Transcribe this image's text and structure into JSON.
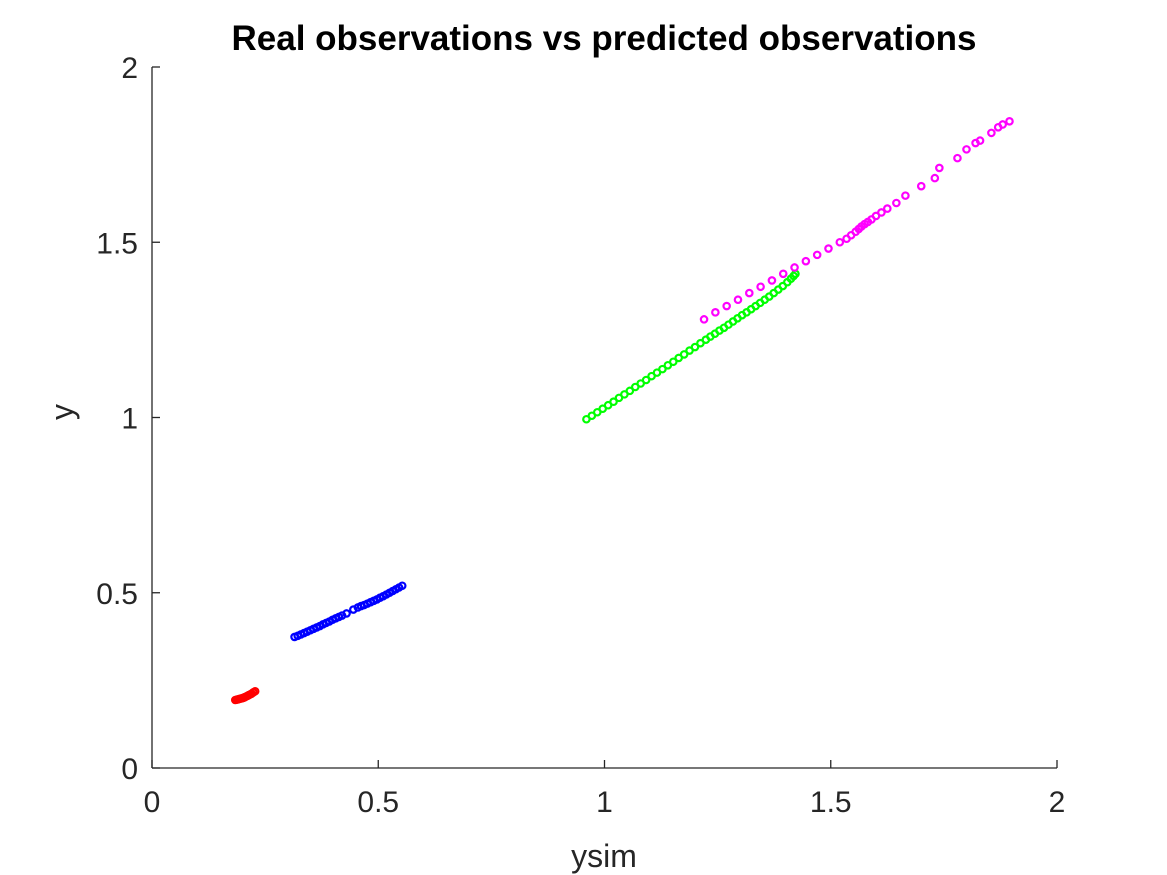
{
  "chart_data": {
    "type": "scatter",
    "title": "Real observations vs predicted observations",
    "xlabel": "ysim",
    "ylabel": "y",
    "xlim": [
      0,
      2
    ],
    "ylim": [
      0,
      2
    ],
    "xticks": [
      0,
      0.5,
      1,
      1.5,
      2
    ],
    "yticks": [
      0,
      0.5,
      1,
      1.5,
      2
    ],
    "xtick_labels": [
      "0",
      "0.5",
      "1",
      "1.5",
      "2"
    ],
    "ytick_labels": [
      "0",
      "0.5",
      "1",
      "1.5",
      "2"
    ],
    "grid": false,
    "legend": "none",
    "marker": "open-circle",
    "series": [
      {
        "color": "#ff0000",
        "points": [
          [
            0.184,
            0.194
          ],
          [
            0.187,
            0.195
          ],
          [
            0.19,
            0.196
          ],
          [
            0.193,
            0.197
          ],
          [
            0.196,
            0.198
          ],
          [
            0.199,
            0.199
          ],
          [
            0.201,
            0.2
          ],
          [
            0.203,
            0.201
          ],
          [
            0.205,
            0.202
          ],
          [
            0.208,
            0.204
          ],
          [
            0.211,
            0.206
          ],
          [
            0.214,
            0.208
          ],
          [
            0.217,
            0.21
          ],
          [
            0.22,
            0.212
          ],
          [
            0.224,
            0.216
          ],
          [
            0.228,
            0.219
          ]
        ]
      },
      {
        "color": "#0000ff",
        "points": [
          [
            0.315,
            0.374
          ],
          [
            0.322,
            0.377
          ],
          [
            0.329,
            0.381
          ],
          [
            0.336,
            0.385
          ],
          [
            0.343,
            0.389
          ],
          [
            0.35,
            0.393
          ],
          [
            0.357,
            0.397
          ],
          [
            0.364,
            0.401
          ],
          [
            0.371,
            0.405
          ],
          [
            0.378,
            0.41
          ],
          [
            0.385,
            0.414
          ],
          [
            0.392,
            0.418
          ],
          [
            0.399,
            0.423
          ],
          [
            0.406,
            0.427
          ],
          [
            0.413,
            0.431
          ],
          [
            0.42,
            0.435
          ],
          [
            0.43,
            0.441
          ],
          [
            0.445,
            0.452
          ],
          [
            0.455,
            0.458
          ],
          [
            0.462,
            0.462
          ],
          [
            0.469,
            0.465
          ],
          [
            0.476,
            0.469
          ],
          [
            0.483,
            0.473
          ],
          [
            0.49,
            0.477
          ],
          [
            0.497,
            0.481
          ],
          [
            0.504,
            0.486
          ],
          [
            0.511,
            0.49
          ],
          [
            0.518,
            0.495
          ],
          [
            0.525,
            0.5
          ],
          [
            0.532,
            0.505
          ],
          [
            0.539,
            0.51
          ],
          [
            0.546,
            0.515
          ],
          [
            0.553,
            0.52
          ]
        ]
      },
      {
        "color": "#00ff00",
        "points": [
          [
            0.96,
            0.995
          ],
          [
            0.972,
            1.005
          ],
          [
            0.984,
            1.015
          ],
          [
            0.996,
            1.025
          ],
          [
            1.008,
            1.035
          ],
          [
            1.02,
            1.045
          ],
          [
            1.032,
            1.056
          ],
          [
            1.044,
            1.066
          ],
          [
            1.056,
            1.076
          ],
          [
            1.068,
            1.087
          ],
          [
            1.08,
            1.097
          ],
          [
            1.092,
            1.107
          ],
          [
            1.104,
            1.118
          ],
          [
            1.116,
            1.128
          ],
          [
            1.128,
            1.138
          ],
          [
            1.14,
            1.149
          ],
          [
            1.152,
            1.159
          ],
          [
            1.164,
            1.17
          ],
          [
            1.176,
            1.18
          ],
          [
            1.188,
            1.191
          ],
          [
            1.2,
            1.201
          ],
          [
            1.212,
            1.212
          ],
          [
            1.224,
            1.222
          ],
          [
            1.234,
            1.231
          ],
          [
            1.244,
            1.239
          ],
          [
            1.254,
            1.248
          ],
          [
            1.264,
            1.256
          ],
          [
            1.274,
            1.265
          ],
          [
            1.284,
            1.274
          ],
          [
            1.294,
            1.283
          ],
          [
            1.304,
            1.292
          ],
          [
            1.314,
            1.3
          ],
          [
            1.324,
            1.309
          ],
          [
            1.334,
            1.318
          ],
          [
            1.344,
            1.327
          ],
          [
            1.354,
            1.336
          ],
          [
            1.364,
            1.345
          ],
          [
            1.374,
            1.355
          ],
          [
            1.384,
            1.365
          ],
          [
            1.394,
            1.375
          ],
          [
            1.404,
            1.386
          ],
          [
            1.412,
            1.396
          ],
          [
            1.418,
            1.404
          ],
          [
            1.422,
            1.41
          ]
        ]
      },
      {
        "color": "#ff00ff",
        "points": [
          [
            1.22,
            1.28
          ],
          [
            1.245,
            1.3
          ],
          [
            1.27,
            1.318
          ],
          [
            1.295,
            1.336
          ],
          [
            1.32,
            1.355
          ],
          [
            1.345,
            1.373
          ],
          [
            1.37,
            1.391
          ],
          [
            1.395,
            1.41
          ],
          [
            1.42,
            1.428
          ],
          [
            1.445,
            1.446
          ],
          [
            1.47,
            1.464
          ],
          [
            1.495,
            1.482
          ],
          [
            1.52,
            1.5
          ],
          [
            1.535,
            1.51
          ],
          [
            1.545,
            1.52
          ],
          [
            1.555,
            1.53
          ],
          [
            1.562,
            1.538
          ],
          [
            1.568,
            1.545
          ],
          [
            1.575,
            1.552
          ],
          [
            1.582,
            1.558
          ],
          [
            1.59,
            1.565
          ],
          [
            1.6,
            1.575
          ],
          [
            1.612,
            1.585
          ],
          [
            1.625,
            1.596
          ],
          [
            1.645,
            1.612
          ],
          [
            1.665,
            1.633
          ],
          [
            1.7,
            1.66
          ],
          [
            1.73,
            1.683
          ],
          [
            1.74,
            1.712
          ],
          [
            1.78,
            1.74
          ],
          [
            1.8,
            1.765
          ],
          [
            1.82,
            1.783
          ],
          [
            1.83,
            1.79
          ],
          [
            1.855,
            1.812
          ],
          [
            1.87,
            1.828
          ],
          [
            1.88,
            1.836
          ],
          [
            1.895,
            1.845
          ]
        ]
      }
    ]
  }
}
